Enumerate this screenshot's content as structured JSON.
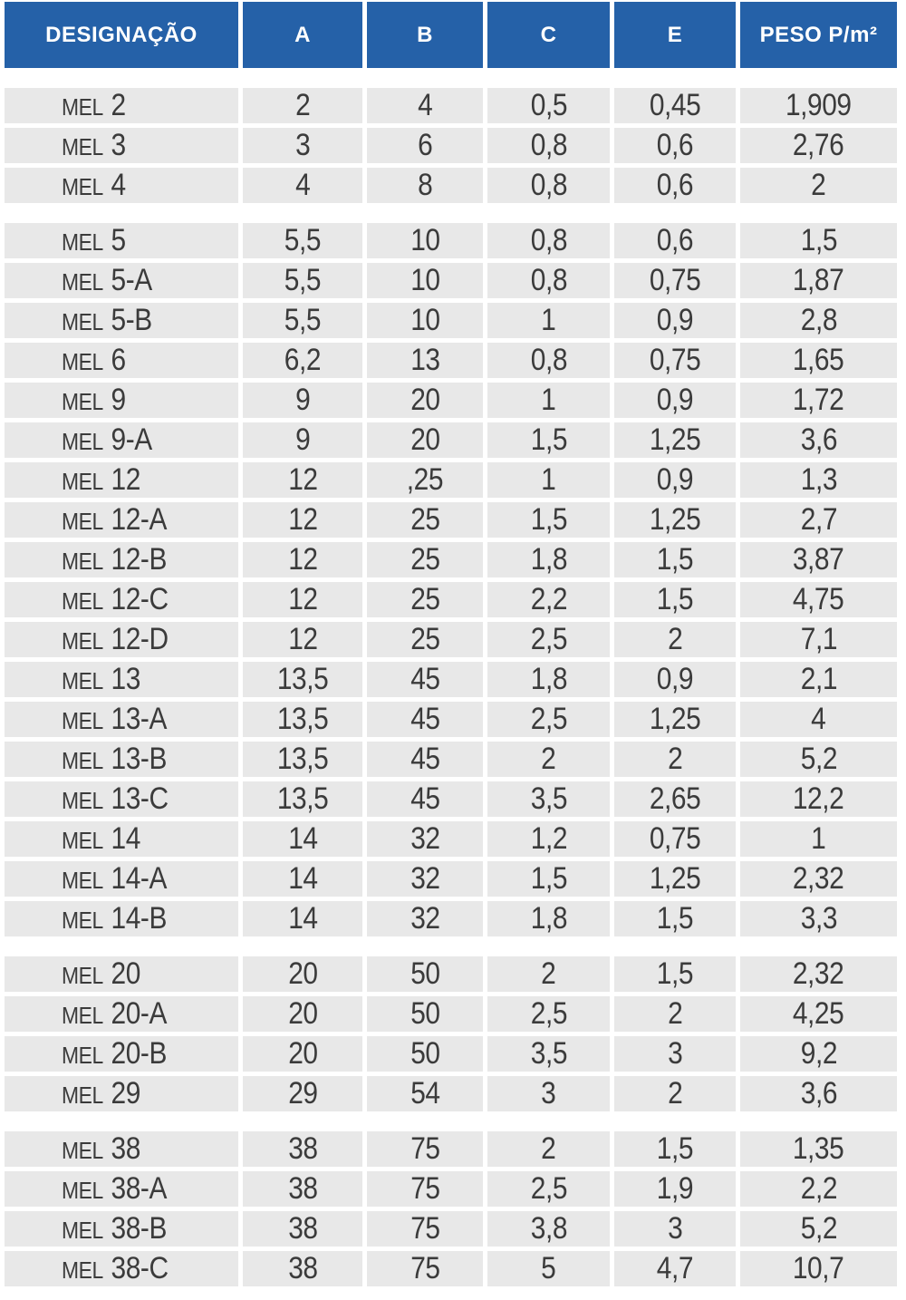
{
  "chart_data": {
    "type": "table",
    "title": "",
    "columns": [
      "DESIGNAÇÃO",
      "A",
      "B",
      "C",
      "E",
      "PESO P/m²"
    ],
    "row_label_prefix": "MEL",
    "groups": [
      [
        [
          "2",
          "2",
          "4",
          "0,5",
          "0,45",
          "1,909"
        ],
        [
          "3",
          "3",
          "6",
          "0,8",
          "0,6",
          "2,76"
        ],
        [
          "4",
          "4",
          "8",
          "0,8",
          "0,6",
          "2"
        ]
      ],
      [
        [
          "5",
          "5,5",
          "10",
          "0,8",
          "0,6",
          "1,5"
        ],
        [
          "5-A",
          "5,5",
          "10",
          "0,8",
          "0,75",
          "1,87"
        ],
        [
          "5-B",
          "5,5",
          "10",
          "1",
          "0,9",
          "2,8"
        ],
        [
          "6",
          "6,2",
          "13",
          "0,8",
          "0,75",
          "1,65"
        ],
        [
          "9",
          "9",
          "20",
          "1",
          "0,9",
          "1,72"
        ],
        [
          "9-A",
          "9",
          "20",
          "1,5",
          "1,25",
          "3,6"
        ],
        [
          "12",
          "12",
          ",25",
          "1",
          "0,9",
          "1,3"
        ],
        [
          "12-A",
          "12",
          "25",
          "1,5",
          "1,25",
          "2,7"
        ],
        [
          "12-B",
          "12",
          "25",
          "1,8",
          "1,5",
          "3,87"
        ],
        [
          "12-C",
          "12",
          "25",
          "2,2",
          "1,5",
          "4,75"
        ],
        [
          "12-D",
          "12",
          "25",
          "2,5",
          "2",
          "7,1"
        ],
        [
          "13",
          "13,5",
          "45",
          "1,8",
          "0,9",
          "2,1"
        ],
        [
          "13-A",
          "13,5",
          "45",
          "2,5",
          "1,25",
          "4"
        ],
        [
          "13-B",
          "13,5",
          "45",
          "2",
          "2",
          "5,2"
        ],
        [
          "13-C",
          "13,5",
          "45",
          "3,5",
          "2,65",
          "12,2"
        ],
        [
          "14",
          "14",
          "32",
          "1,2",
          "0,75",
          "1"
        ],
        [
          "14-A",
          "14",
          "32",
          "1,5",
          "1,25",
          "2,32"
        ],
        [
          "14-B",
          "14",
          "32",
          "1,8",
          "1,5",
          "3,3"
        ]
      ],
      [
        [
          "20",
          "20",
          "50",
          "2",
          "1,5",
          "2,32"
        ],
        [
          "20-A",
          "20",
          "50",
          "2,5",
          "2",
          "4,25"
        ],
        [
          "20-B",
          "20",
          "50",
          "3,5",
          "3",
          "9,2"
        ],
        [
          "29",
          "29",
          "54",
          "3",
          "2",
          "3,6"
        ]
      ],
      [
        [
          "38",
          "38",
          "75",
          "2",
          "1,5",
          "1,35"
        ],
        [
          "38-A",
          "38",
          "75",
          "2,5",
          "1,9",
          "2,2"
        ],
        [
          "38-B",
          "38",
          "75",
          "3,8",
          "3",
          "5,2"
        ],
        [
          "38-C",
          "38",
          "75",
          "5",
          "4,7",
          "10,7"
        ]
      ]
    ],
    "layout": {
      "legend": "none",
      "grid": "white gaps between gray cells",
      "group_separators": true
    }
  },
  "colors": {
    "header_bg": "#2561A8",
    "header_text": "#FFFFFF",
    "row_bg": "#E8E8E8",
    "cell_text": "#3B3B3B"
  }
}
